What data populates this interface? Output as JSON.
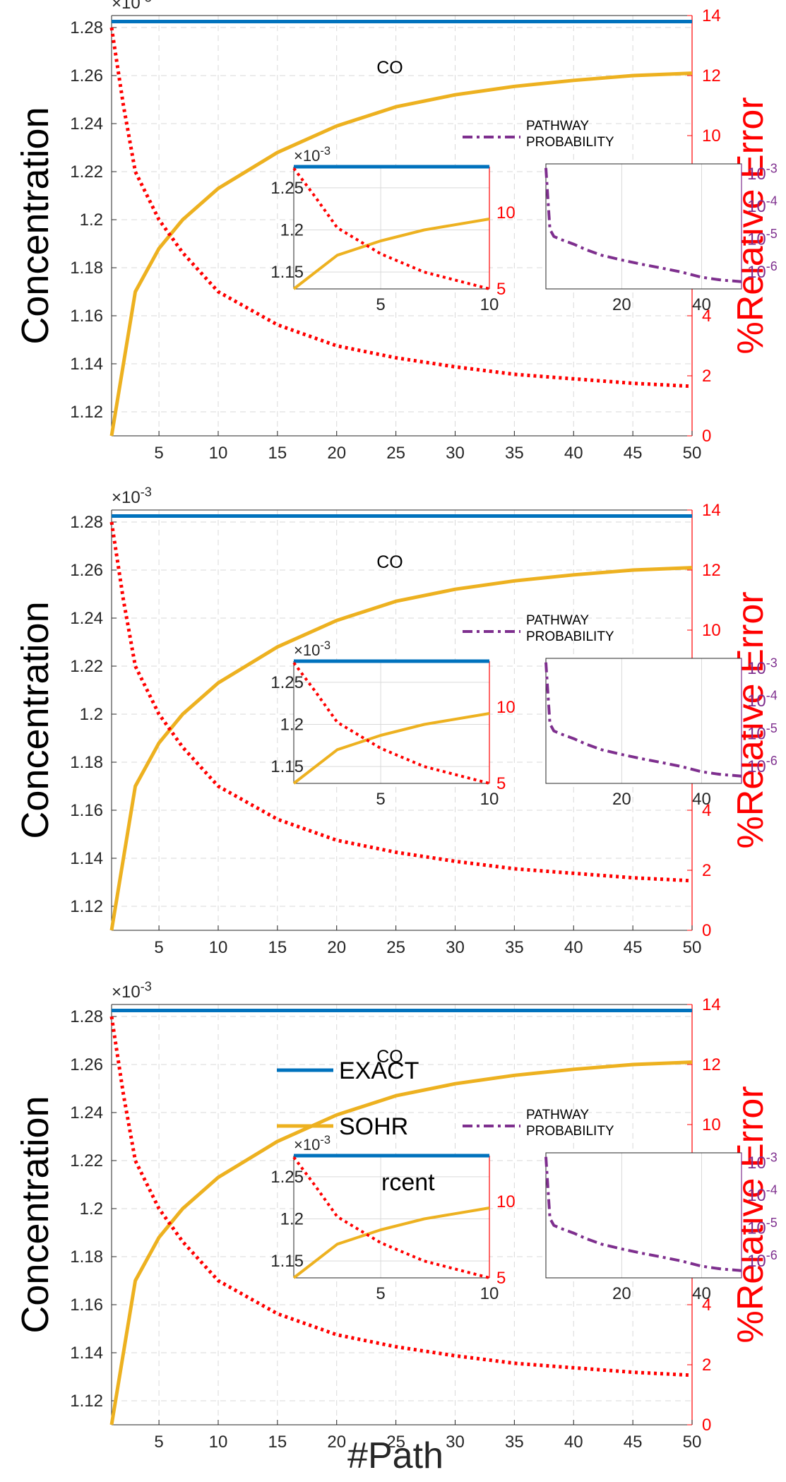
{
  "figure": {
    "xlabel": "#Path",
    "ylabel_left": "Concentration",
    "ylabel_right": "%Relative Error",
    "exponent_main": "×10",
    "exponent_power": "-3",
    "species_label": "CO"
  },
  "legend": {
    "exact": "EXACT",
    "sohr": "SOHR",
    "percent_fragment": "rcent",
    "pathway_line1": "PATHWAY",
    "pathway_line2": "PROBABILITY"
  },
  "colors": {
    "exact": "#0072bd",
    "sohr": "#edb120",
    "error": "#ff0000",
    "pathway": "#7e2f8e",
    "grid": "#d9d9d9"
  },
  "chart_data": [
    {
      "type": "line",
      "panel": "top",
      "xlim": [
        1,
        50
      ],
      "ylim_left": [
        1.11,
        1.285
      ],
      "ylim_right": [
        0,
        14
      ],
      "x_ticks": [
        5,
        10,
        15,
        20,
        25,
        30,
        35,
        40,
        45,
        50
      ],
      "y_left_ticks": [
        1.12,
        1.14,
        1.16,
        1.18,
        1.2,
        1.22,
        1.24,
        1.26,
        1.28
      ],
      "y_right_ticks": [
        0,
        2,
        4,
        6,
        8,
        10,
        12,
        14
      ],
      "series": [
        {
          "name": "EXACT",
          "axis": "left",
          "x": [
            1,
            50
          ],
          "y": [
            1.2825,
            1.2825
          ]
        },
        {
          "name": "SOHR",
          "axis": "left",
          "x": [
            1,
            3,
            5,
            7,
            10,
            15,
            20,
            25,
            30,
            35,
            40,
            45,
            50
          ],
          "y": [
            1.11,
            1.17,
            1.188,
            1.2,
            1.213,
            1.228,
            1.239,
            1.247,
            1.252,
            1.2555,
            1.258,
            1.26,
            1.261
          ]
        },
        {
          "axis": "right",
          "x": [
            1,
            2,
            3,
            5,
            7,
            10,
            15,
            20,
            25,
            30,
            35,
            40,
            45,
            50
          ],
          "y": [
            13.6,
            11,
            8.8,
            7.2,
            6.1,
            4.8,
            3.7,
            3,
            2.6,
            2.3,
            2.05,
            1.9,
            1.75,
            1.65
          ]
        }
      ],
      "insets": [
        {
          "xlim": [
            1,
            10
          ],
          "x_ticks": [
            5,
            10
          ],
          "ylim_left": [
            1.13,
            1.275
          ],
          "y_left_ticks": [
            1.15,
            1.2,
            1.25
          ],
          "ylim_right": [
            5,
            13
          ],
          "y_right_ticks": [
            5,
            10
          ],
          "exponent_power": "-3",
          "series": [
            {
              "name": "EXACT",
              "axis": "left",
              "x": [
                1,
                10
              ],
              "y": [
                1.275,
                1.275
              ]
            },
            {
              "name": "SOHR",
              "axis": "left",
              "x": [
                1,
                3,
                5,
                7,
                10
              ],
              "y": [
                1.13,
                1.17,
                1.187,
                1.2,
                1.213
              ]
            },
            {
              "axis": "right",
              "x": [
                1,
                2,
                3,
                5,
                7,
                10
              ],
              "y": [
                12.9,
                11,
                9,
                7.3,
                6.1,
                5
              ]
            }
          ]
        },
        {
          "xlim": [
            1,
            50
          ],
          "x_ticks": [
            20,
            40
          ],
          "y_scale": "log",
          "ylim": [
            3e-07,
            0.002
          ],
          "y_ticks": [
            "10^-3",
            "10^-4",
            "10^-5",
            "10^-6"
          ],
          "series": [
            {
              "name": "PATHWAY PROBABILITY",
              "x": [
                1,
                2,
                3,
                5,
                8,
                11,
                15,
                20,
                25,
                30,
                35,
                40,
                45,
                50
              ],
              "y": [
                0.0015,
                2e-05,
                1.2e-05,
                9.5e-06,
                7e-06,
                4.8e-06,
                3.2e-06,
                2.3e-06,
                1.7e-06,
                1.3e-06,
                9.8e-07,
                6.8e-07,
                5.6e-07,
                5e-07
              ]
            }
          ]
        }
      ]
    },
    {
      "type": "line",
      "panel": "middle",
      "xlim": [
        1,
        50
      ],
      "ylim_left": [
        1.11,
        1.285
      ],
      "ylim_right": [
        0,
        14
      ],
      "x_ticks": [
        5,
        10,
        15,
        20,
        25,
        30,
        35,
        40,
        45,
        50
      ],
      "y_left_ticks": [
        1.12,
        1.14,
        1.16,
        1.18,
        1.2,
        1.22,
        1.24,
        1.26,
        1.28
      ],
      "y_right_ticks": [
        0,
        2,
        4,
        6,
        8,
        10,
        12,
        14
      ],
      "series": [
        {
          "name": "EXACT",
          "axis": "left",
          "x": [
            1,
            50
          ],
          "y": [
            1.2825,
            1.2825
          ]
        },
        {
          "name": "SOHR",
          "axis": "left",
          "x": [
            1,
            3,
            5,
            7,
            10,
            15,
            20,
            25,
            30,
            35,
            40,
            45,
            50
          ],
          "y": [
            1.11,
            1.17,
            1.188,
            1.2,
            1.213,
            1.228,
            1.239,
            1.247,
            1.252,
            1.2555,
            1.258,
            1.26,
            1.261
          ]
        },
        {
          "axis": "right",
          "x": [
            1,
            2,
            3,
            5,
            7,
            10,
            15,
            20,
            25,
            30,
            35,
            40,
            45,
            50
          ],
          "y": [
            13.6,
            11,
            8.8,
            7.2,
            6.1,
            4.8,
            3.7,
            3,
            2.6,
            2.3,
            2.05,
            1.9,
            1.75,
            1.65
          ]
        }
      ],
      "insets": [
        {
          "xlim": [
            1,
            10
          ],
          "x_ticks": [
            5,
            10
          ],
          "ylim_left": [
            1.13,
            1.275
          ],
          "y_left_ticks": [
            1.15,
            1.2,
            1.25
          ],
          "ylim_right": [
            5,
            13
          ],
          "y_right_ticks": [
            5,
            10
          ],
          "exponent_power": "-3",
          "series": [
            {
              "name": "EXACT",
              "axis": "left",
              "x": [
                1,
                10
              ],
              "y": [
                1.275,
                1.275
              ]
            },
            {
              "name": "SOHR",
              "axis": "left",
              "x": [
                1,
                3,
                5,
                7,
                10
              ],
              "y": [
                1.13,
                1.17,
                1.187,
                1.2,
                1.213
              ]
            },
            {
              "axis": "right",
              "x": [
                1,
                2,
                3,
                5,
                7,
                10
              ],
              "y": [
                12.9,
                11,
                9,
                7.3,
                6.1,
                5
              ]
            }
          ]
        },
        {
          "xlim": [
            1,
            50
          ],
          "x_ticks": [
            20,
            40
          ],
          "y_scale": "log",
          "ylim": [
            3e-07,
            0.002
          ],
          "y_ticks": [
            "10^-3",
            "10^-4",
            "10^-5",
            "10^-6"
          ],
          "series": [
            {
              "name": "PATHWAY PROBABILITY",
              "x": [
                1,
                2,
                3,
                5,
                8,
                11,
                15,
                20,
                25,
                30,
                35,
                40,
                45,
                50
              ],
              "y": [
                0.0015,
                2e-05,
                1.2e-05,
                9.5e-06,
                7e-06,
                4.8e-06,
                3.2e-06,
                2.3e-06,
                1.7e-06,
                1.3e-06,
                9.8e-07,
                6.8e-07,
                5.6e-07,
                5e-07
              ]
            }
          ]
        }
      ]
    },
    {
      "type": "line",
      "panel": "bottom",
      "xlim": [
        1,
        50
      ],
      "ylim_left": [
        1.11,
        1.285
      ],
      "ylim_right": [
        0,
        14
      ],
      "x_ticks": [
        5,
        10,
        15,
        20,
        25,
        30,
        35,
        40,
        45,
        50
      ],
      "y_left_ticks": [
        1.12,
        1.14,
        1.16,
        1.18,
        1.2,
        1.22,
        1.24,
        1.26,
        1.28
      ],
      "y_right_ticks": [
        0,
        2,
        4,
        6,
        8,
        10,
        12,
        14
      ],
      "series": [
        {
          "name": "EXACT",
          "axis": "left",
          "x": [
            1,
            50
          ],
          "y": [
            1.2825,
            1.2825
          ]
        },
        {
          "name": "SOHR",
          "axis": "left",
          "x": [
            1,
            3,
            5,
            7,
            10,
            15,
            20,
            25,
            30,
            35,
            40,
            45,
            50
          ],
          "y": [
            1.11,
            1.17,
            1.188,
            1.2,
            1.213,
            1.228,
            1.239,
            1.247,
            1.252,
            1.2555,
            1.258,
            1.26,
            1.261
          ]
        },
        {
          "axis": "right",
          "x": [
            1,
            2,
            3,
            5,
            7,
            10,
            15,
            20,
            25,
            30,
            35,
            40,
            45,
            50
          ],
          "y": [
            13.6,
            11,
            8.8,
            7.2,
            6.1,
            4.8,
            3.7,
            3,
            2.6,
            2.3,
            2.05,
            1.9,
            1.75,
            1.65
          ]
        }
      ],
      "insets": [
        {
          "xlim": [
            1,
            10
          ],
          "x_ticks": [
            5,
            10
          ],
          "ylim_left": [
            1.13,
            1.275
          ],
          "y_left_ticks": [
            1.15,
            1.2,
            1.25
          ],
          "ylim_right": [
            5,
            13
          ],
          "y_right_ticks": [
            5,
            10
          ],
          "exponent_power": "-3",
          "series": [
            {
              "name": "EXACT",
              "axis": "left",
              "x": [
                1,
                10
              ],
              "y": [
                1.275,
                1.275
              ]
            },
            {
              "name": "SOHR",
              "axis": "left",
              "x": [
                1,
                3,
                5,
                7,
                10
              ],
              "y": [
                1.13,
                1.17,
                1.187,
                1.2,
                1.213
              ]
            },
            {
              "axis": "right",
              "x": [
                1,
                2,
                3,
                5,
                7,
                10
              ],
              "y": [
                12.9,
                11,
                9,
                7.3,
                6.1,
                5
              ]
            }
          ]
        },
        {
          "xlim": [
            1,
            50
          ],
          "x_ticks": [
            20,
            40
          ],
          "y_scale": "log",
          "ylim": [
            3e-07,
            0.002
          ],
          "y_ticks": [
            "10^-3",
            "10^-4",
            "10^-5",
            "10^-6"
          ],
          "series": [
            {
              "name": "PATHWAY PROBABILITY",
              "x": [
                1,
                2,
                3,
                5,
                8,
                11,
                15,
                20,
                25,
                30,
                35,
                40,
                45,
                50
              ],
              "y": [
                0.0015,
                2e-05,
                1.2e-05,
                9.5e-06,
                7e-06,
                4.8e-06,
                3.2e-06,
                2.3e-06,
                1.7e-06,
                1.3e-06,
                9.8e-07,
                6.8e-07,
                5.6e-07,
                5e-07
              ]
            }
          ]
        }
      ]
    }
  ]
}
